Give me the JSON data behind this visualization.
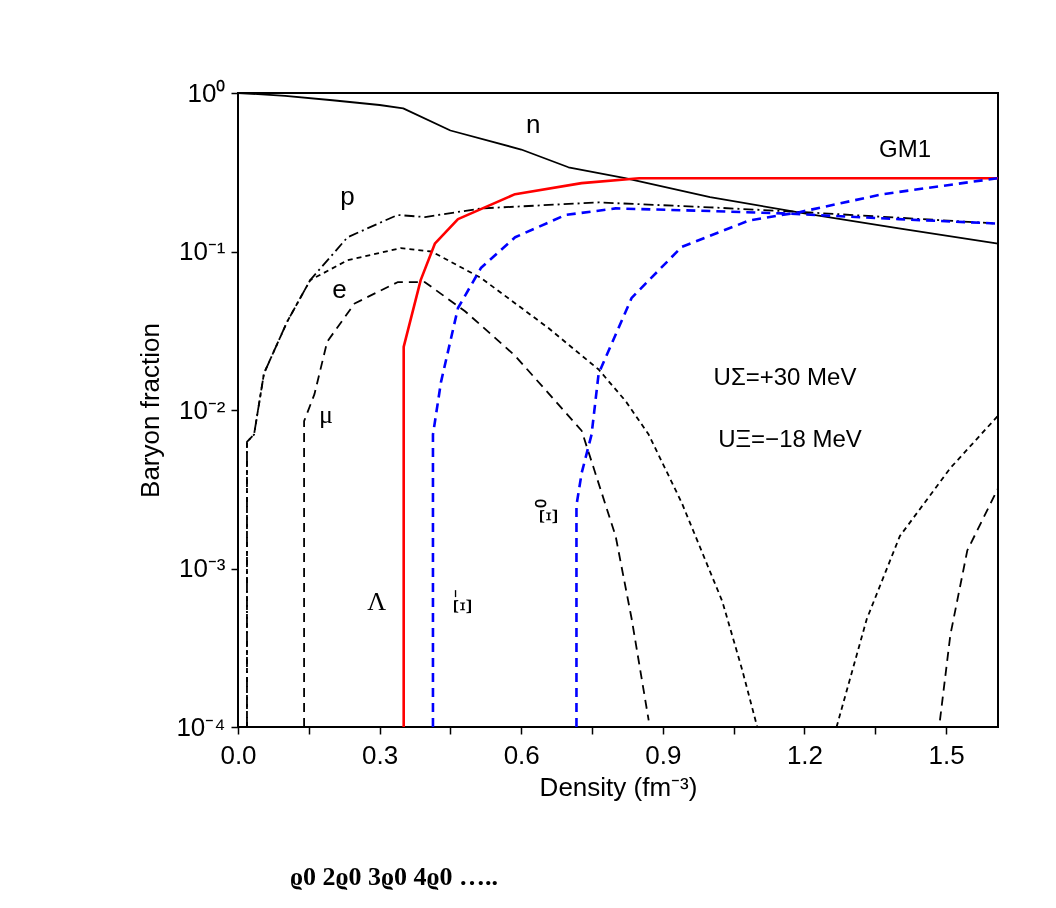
{
  "chart_data": {
    "type": "line",
    "xlabel": "Density (fm⁻³)",
    "ylabel": "Baryon fraction",
    "log": "y",
    "grid": false,
    "xlim": [
      0,
      1.61
    ],
    "ylim": [
      0.0001,
      1
    ],
    "xticks": [
      {
        "value": 0,
        "label": "0.0"
      },
      {
        "value": 0.15,
        "label": null
      },
      0.3,
      {
        "value": 0.45,
        "label": null
      },
      0.6,
      {
        "value": 0.75,
        "label": null
      },
      0.9,
      {
        "value": 1.05,
        "label": null
      },
      1.2,
      {
        "value": 1.35,
        "label": null
      },
      1.5
    ],
    "yticks": [
      {
        "value": 0.0001,
        "label": "10⁻⁴"
      },
      {
        "value": 0.001,
        "label": "10⁻³"
      },
      {
        "value": 0.01,
        "label": "10⁻²"
      },
      {
        "value": 0.1,
        "label": "10⁻¹"
      },
      {
        "value": 1,
        "label": "10⁰"
      }
    ],
    "series": [
      {
        "name": "n",
        "color": "#000000",
        "line_style": "solid",
        "x": [
          0,
          0.1,
          0.2,
          0.3,
          0.35,
          0.45,
          0.6,
          0.7,
          0.82,
          1.0,
          1.2,
          1.4,
          1.61
        ],
        "values": [
          1,
          0.96,
          0.9,
          0.84,
          0.8,
          0.58,
          0.44,
          0.34,
          0.29,
          0.22,
          0.174,
          0.14,
          0.112
        ]
      },
      {
        "name": "p",
        "color": "#000000",
        "line_style": "dashdot",
        "x": [
          0.019,
          0.019,
          0.034,
          0.055,
          0.104,
          0.153,
          0.232,
          0.338,
          0.396,
          0.515,
          0.764,
          1.0,
          1.2,
          1.61
        ],
        "values": [
          0.0001,
          0.0063,
          0.007,
          0.017,
          0.036,
          0.066,
          0.123,
          0.17,
          0.165,
          0.187,
          0.204,
          0.19,
          0.177,
          0.15
        ]
      },
      {
        "name": "e",
        "color": "#000000",
        "line_style": "dotted",
        "x": [
          0.019,
          0.019,
          0.034,
          0.055,
          0.104,
          0.153,
          0.232,
          0.345,
          0.41,
          0.515,
          0.657,
          0.764,
          0.821,
          0.87,
          0.94,
          1.026,
          1.068,
          1.1,
          1.18,
          1.268,
          1.332,
          1.402,
          1.509,
          1.61
        ],
        "values": [
          0.0001,
          0.0063,
          0.007,
          0.017,
          0.036,
          0.066,
          0.088,
          0.105,
          0.1,
          0.068,
          0.033,
          0.018,
          0.0114,
          0.007,
          0.0026,
          0.00062,
          0.00023,
          0.0001,
          null,
          0.0001,
          0.00048,
          0.0016,
          0.0043,
          0.0092
        ]
      },
      {
        "name": "μ",
        "color": "#000000",
        "line_style": "dashed",
        "x": [
          0.14,
          0.14,
          0.162,
          0.189,
          0.247,
          0.338,
          0.396,
          0.481,
          0.587,
          0.728,
          0.8,
          0.834,
          0.87,
          1.2,
          1.487,
          1.509,
          1.545,
          1.61
        ],
        "values": [
          0.0001,
          0.0085,
          0.0126,
          0.027,
          0.047,
          0.064,
          0.064,
          0.042,
          0.022,
          0.0074,
          0.0016,
          0.00048,
          0.00011,
          null,
          0.00011,
          0.00038,
          0.0013,
          0.0032
        ]
      },
      {
        "name": "Λ",
        "color": "#ff0000",
        "line_style": "solid",
        "x": [
          0.351,
          0.351,
          0.387,
          0.417,
          0.466,
          0.587,
          0.728,
          0.85,
          1.2,
          1.61
        ],
        "values": [
          0.0001,
          0.025,
          0.066,
          0.112,
          0.16,
          0.23,
          0.27,
          0.29,
          0.29,
          0.29
        ]
      },
      {
        "name": "Ξ⁻",
        "color": "#0000ff",
        "line_style": "dashed",
        "x": [
          0.413,
          0.413,
          0.43,
          0.466,
          0.515,
          0.587,
          0.694,
          0.8,
          1.0,
          1.153,
          1.4,
          1.61
        ],
        "values": [
          0.0001,
          0.007,
          0.015,
          0.044,
          0.079,
          0.123,
          0.17,
          0.187,
          0.18,
          0.174,
          0.16,
          0.15
        ]
      },
      {
        "name": "Ξ⁰",
        "color": "#0000ff",
        "line_style": "dashed",
        "x": [
          0.717,
          0.717,
          0.728,
          0.749,
          0.764,
          0.834,
          0.94,
          1.083,
          1.189,
          1.366,
          1.61
        ],
        "values": [
          0.0001,
          0.0025,
          0.004,
          0.007,
          0.017,
          0.051,
          0.107,
          0.157,
          0.177,
          0.23,
          0.29
        ]
      }
    ],
    "annotations": [
      "GM1",
      "UΣ=+30 MeV",
      "UΞ=−18 MeV",
      "ϱ0   2ϱ0   3ϱ0   4ϱ0 ….."
    ]
  }
}
